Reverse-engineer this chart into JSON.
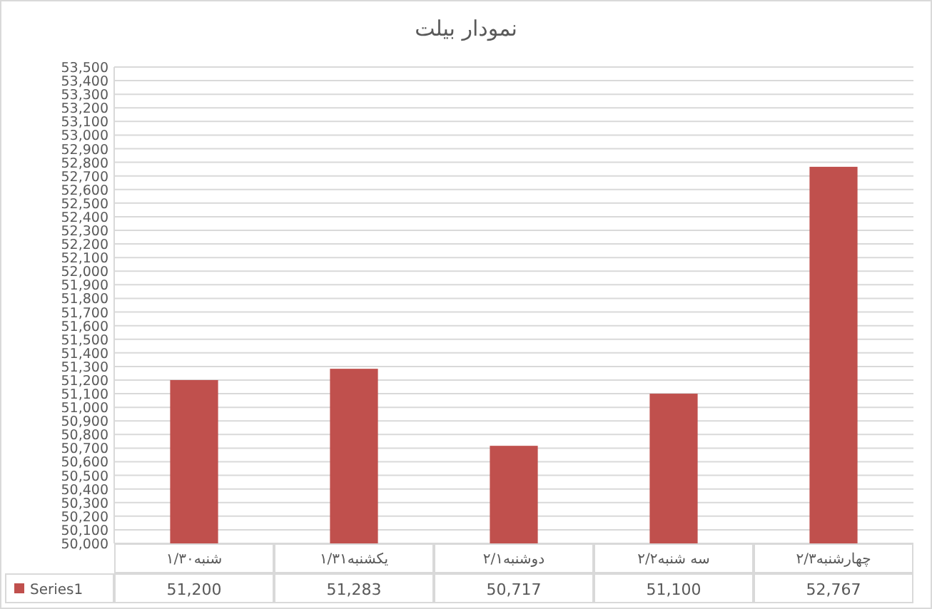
{
  "chart_data": {
    "type": "bar",
    "title": "نمودار بیلت",
    "categories": [
      "شنبه۱/۳۰",
      "یکشنبه۱/۳۱",
      "دوشنبه۲/۱",
      "سه شنبه۲/۲",
      "چهارشنبه۲/۳"
    ],
    "series": [
      {
        "name": "Series1",
        "color": "#c0504d",
        "values": [
          51200,
          51283,
          50717,
          51100,
          52767
        ],
        "value_labels": [
          "51,200",
          "51,283",
          "50,717",
          "51,100",
          "52,767"
        ]
      }
    ],
    "ylim": [
      50000,
      53500
    ],
    "yticks": [
      {
        "value": 50000,
        "label": "50,000"
      },
      {
        "value": 50100,
        "label": "50,100"
      },
      {
        "value": 50200,
        "label": "50,200"
      },
      {
        "value": 50300,
        "label": "50,300"
      },
      {
        "value": 50400,
        "label": "50,400"
      },
      {
        "value": 50500,
        "label": "50,500"
      },
      {
        "value": 50600,
        "label": "50,600"
      },
      {
        "value": 50700,
        "label": "50,700"
      },
      {
        "value": 50800,
        "label": "50,800"
      },
      {
        "value": 50900,
        "label": "50,900"
      },
      {
        "value": 51000,
        "label": "51,000"
      },
      {
        "value": 51100,
        "label": "51,100"
      },
      {
        "value": 51200,
        "label": "51,200"
      },
      {
        "value": 51300,
        "label": "51,300"
      },
      {
        "value": 51400,
        "label": "51,400"
      },
      {
        "value": 51500,
        "label": "51,500"
      },
      {
        "value": 51600,
        "label": "51,600"
      },
      {
        "value": 51700,
        "label": "51,700"
      },
      {
        "value": 51800,
        "label": "51,800"
      },
      {
        "value": 51900,
        "label": "51,900"
      },
      {
        "value": 52000,
        "label": "52,000"
      },
      {
        "value": 52100,
        "label": "52,100"
      },
      {
        "value": 52200,
        "label": "52,200"
      },
      {
        "value": 52300,
        "label": "52,300"
      },
      {
        "value": 52400,
        "label": "52,400"
      },
      {
        "value": 52500,
        "label": "52,500"
      },
      {
        "value": 52600,
        "label": "52,600"
      },
      {
        "value": 52700,
        "label": "52,700"
      },
      {
        "value": 52800,
        "label": "52,800"
      },
      {
        "value": 52900,
        "label": "52,900"
      },
      {
        "value": 53000,
        "label": "53,000"
      },
      {
        "value": 53100,
        "label": "53,100"
      },
      {
        "value": 53200,
        "label": "53,200"
      },
      {
        "value": 53300,
        "label": "53,300"
      },
      {
        "value": 53400,
        "label": "53,400"
      },
      {
        "value": 53500,
        "label": "53,500"
      }
    ],
    "grid": "y"
  }
}
